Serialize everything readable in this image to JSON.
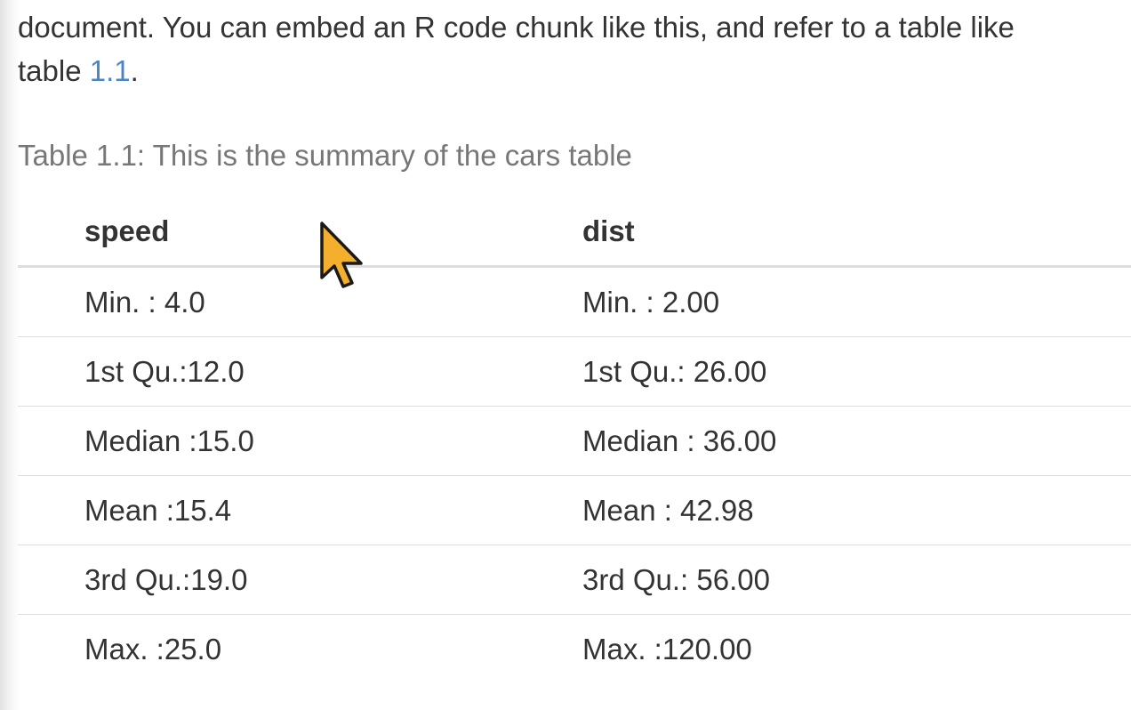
{
  "paragraph": {
    "line1": "document. You can embed an R code chunk like this, and refer to a table like",
    "line2_prefix": "table ",
    "table_ref": "1.1",
    "line2_suffix": "."
  },
  "caption": "Table 1.1: This is the summary of the cars table",
  "table": {
    "headers": [
      "speed",
      "dist"
    ],
    "rows": [
      [
        "Min. : 4.0",
        "Min. : 2.00"
      ],
      [
        "1st Qu.:12.0",
        "1st Qu.: 26.00"
      ],
      [
        "Median :15.0",
        "Median : 36.00"
      ],
      [
        "Mean :15.4",
        "Mean : 42.98"
      ],
      [
        "3rd Qu.:19.0",
        "3rd Qu.: 56.00"
      ],
      [
        "Max. :25.0",
        "Max. :120.00"
      ]
    ]
  },
  "colors": {
    "text": "#333333",
    "caption": "#777777",
    "link": "#4a86c5",
    "rule": "#dddddd",
    "cursor_fill": "#f4b02c"
  },
  "icons": {
    "cursor": "mouse-pointer-icon"
  }
}
